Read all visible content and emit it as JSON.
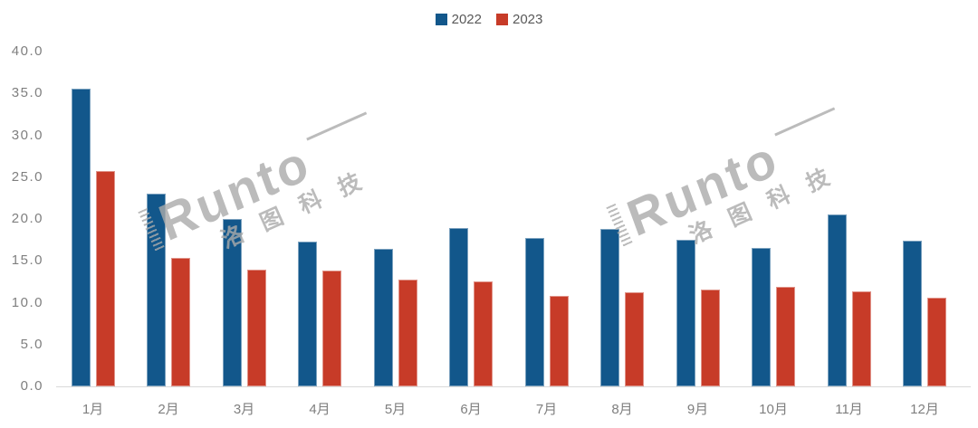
{
  "watermark": {
    "brand": "Runto",
    "brand_cn": "洛图科技"
  },
  "chart_data": {
    "type": "bar",
    "title": "",
    "xlabel": "",
    "ylabel": "",
    "categories": [
      "1月",
      "2月",
      "3月",
      "4月",
      "5月",
      "6月",
      "7月",
      "8月",
      "9月",
      "10月",
      "11月",
      "12月"
    ],
    "series": [
      {
        "name": "2022",
        "color": "#12578b",
        "values": [
          35.6,
          23.0,
          20.0,
          17.3,
          16.4,
          18.9,
          17.7,
          18.8,
          17.5,
          16.5,
          20.5,
          17.4
        ]
      },
      {
        "name": "2023",
        "color": "#c73b28",
        "values": [
          25.7,
          15.4,
          13.9,
          13.8,
          12.8,
          12.5,
          10.8,
          11.2,
          11.6,
          11.9,
          11.4,
          10.6
        ]
      }
    ],
    "ylim": [
      0,
      40
    ],
    "ytick_step": 5,
    "ytick_labels": [
      "0.0",
      "5.0",
      "10.0",
      "15.0",
      "20.0",
      "25.0",
      "30.0",
      "35.0",
      "40.0"
    ],
    "grid": false,
    "legend_position": "top-center",
    "axis_label_color": "#7f7f7f",
    "legend_text_color": "#595959",
    "baseline_color": "#d9d9d9",
    "watermark_color": "#ababab"
  }
}
